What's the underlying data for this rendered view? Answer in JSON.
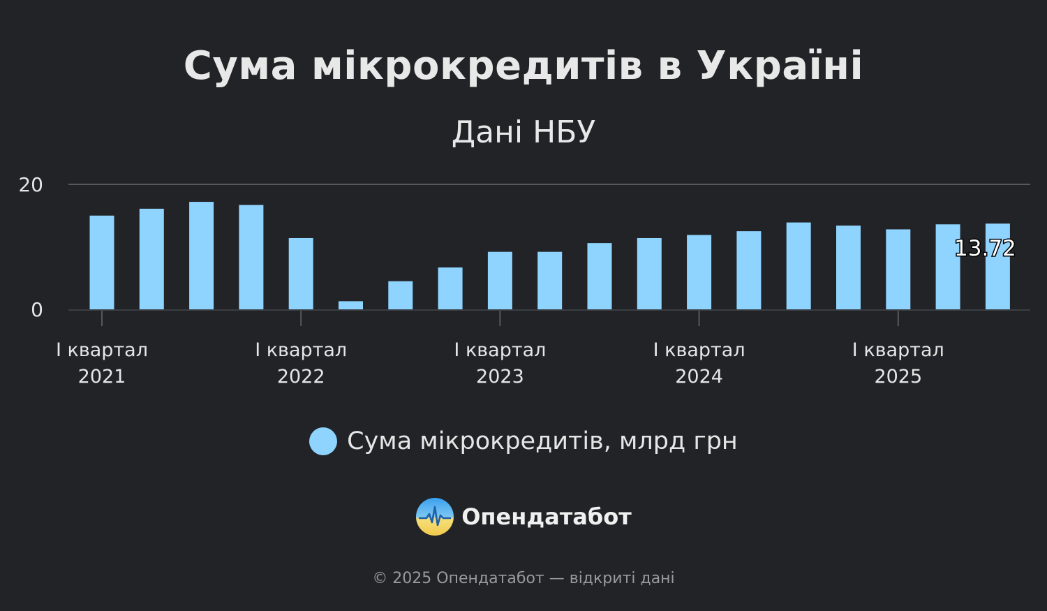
{
  "chart_data": {
    "type": "bar",
    "title": "Сума мікрокредитів в Україні",
    "subtitle": "Дані НБУ",
    "ylim": [
      0,
      20
    ],
    "y_ticks": [
      "0",
      "20"
    ],
    "x_ticks": [
      {
        "index": 0,
        "line1": "I квартал",
        "line2": "2021"
      },
      {
        "index": 4,
        "line1": "I квартал",
        "line2": "2022"
      },
      {
        "index": 8,
        "line1": "I квартал",
        "line2": "2023"
      },
      {
        "index": 12,
        "line1": "I квартал",
        "line2": "2024"
      },
      {
        "index": 16,
        "line1": "I квартал",
        "line2": "2025"
      }
    ],
    "series": [
      {
        "name": "Сума мікрокредитів, млрд грн",
        "color": "#8fd3ff",
        "values": [
          15.0,
          16.1,
          17.2,
          16.7,
          11.4,
          1.3,
          4.5,
          6.7,
          9.2,
          9.2,
          10.6,
          11.4,
          11.9,
          12.5,
          13.9,
          13.4,
          12.8,
          13.6,
          13.72
        ]
      }
    ],
    "last_value_label": "13.72",
    "grid": true,
    "legend_position": "bottom-center"
  },
  "brand": {
    "name": "Опендатабот"
  },
  "footer": {
    "text": "© 2025 Опендатабот — відкриті дані"
  }
}
